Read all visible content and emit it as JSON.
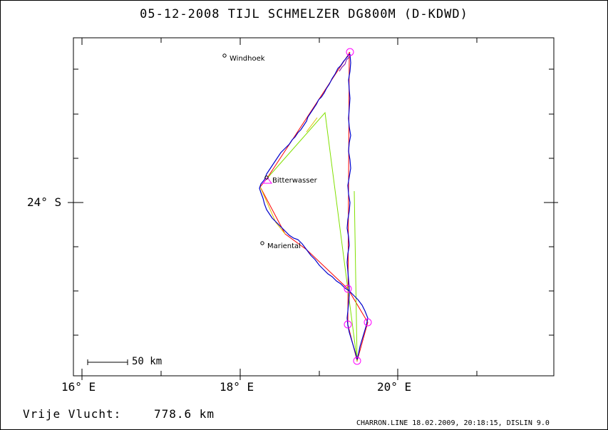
{
  "title": "05-12-2008   TIJL SCHMELZER   DG800M (D-KDWD)",
  "axes": {
    "y_label": "24° S",
    "x_labels": [
      "16° E",
      "18° E",
      "20° E"
    ]
  },
  "places": [
    {
      "name": "Windhoek"
    },
    {
      "name": "Bitterwasser"
    },
    {
      "name": "Mariental"
    }
  ],
  "scale_label": "50 km",
  "footer": {
    "flight_label": "Vrije Vlucht:",
    "distance": "778.6 km",
    "credit": "CHARRON.LINE 18.02.2009, 20:18:15, DISLIN 9.0"
  },
  "colors": {
    "track": "#0000cc",
    "declared_route": "#ff0000",
    "optimized_route": "#80e000",
    "leg_highlight": "#e0c000",
    "turnpoint": "#ff00ff"
  }
}
